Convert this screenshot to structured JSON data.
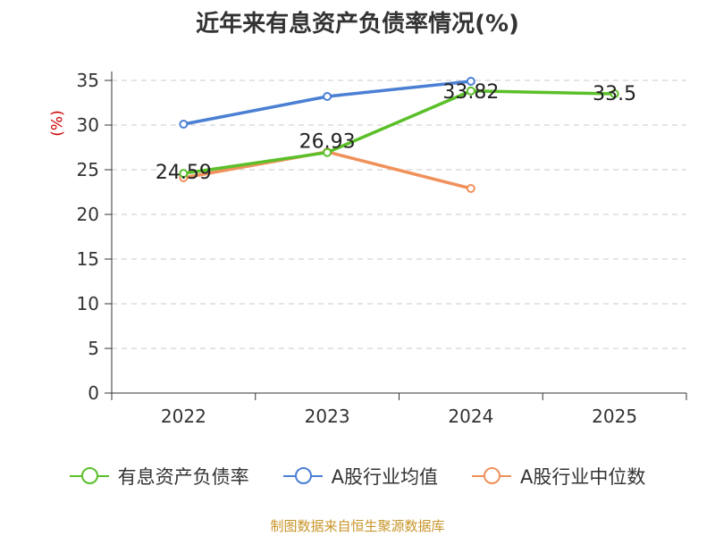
{
  "chart_data": {
    "type": "line",
    "title": "近年来有息资产负债率情况(%)",
    "unit_label": "(%)",
    "categories": [
      "2022",
      "2023",
      "2024",
      "2025"
    ],
    "ylim": [
      0,
      35
    ],
    "yticks": [
      0,
      5,
      10,
      15,
      20,
      25,
      30,
      35
    ],
    "grid": true,
    "legend_position": "bottom",
    "series": [
      {
        "name": "有息资产负债率",
        "color": "#5bbf2a",
        "values": [
          24.59,
          26.93,
          33.82,
          33.5
        ],
        "labels": [
          "24.59",
          "26.93",
          "33.82",
          "33.5"
        ]
      },
      {
        "name": "A股行业均值",
        "color": "#4a7fd4",
        "values": [
          30.1,
          33.2,
          34.9,
          null
        ],
        "labels": []
      },
      {
        "name": "A股行业中位数",
        "color": "#f0905a",
        "values": [
          24.1,
          27.0,
          22.9,
          null
        ],
        "labels": []
      }
    ]
  },
  "source": "制图数据来自恒生聚源数据库"
}
